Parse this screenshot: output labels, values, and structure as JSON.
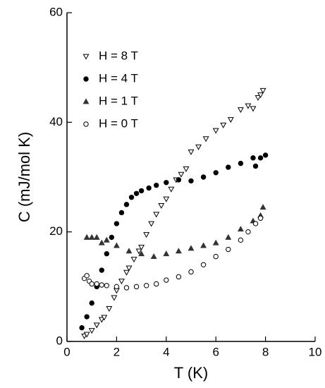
{
  "chart_data": {
    "type": "scatter",
    "x_label": "T (K)",
    "y_label": "C (mJ/mol K)",
    "xlim": [
      0,
      10
    ],
    "ylim": [
      0,
      60
    ],
    "xticks": [
      0,
      2,
      4,
      6,
      8,
      10
    ],
    "yticks": [
      0,
      20,
      40,
      60
    ],
    "legend": "upper left",
    "series": [
      {
        "name": "H = 8 T",
        "color": "#000000",
        "marker": "triangle-down-open",
        "x": [
          0.7,
          0.8,
          1.0,
          1.2,
          1.4,
          1.5,
          1.7,
          1.9,
          2.0,
          2.2,
          2.4,
          2.5,
          2.7,
          2.9,
          3.0,
          3.2,
          3.4,
          3.6,
          3.8,
          4.0,
          4.2,
          4.4,
          4.6,
          4.8,
          5.0,
          5.3,
          5.6,
          6.0,
          6.3,
          6.6,
          7.0,
          7.3,
          7.5,
          7.7,
          7.8,
          7.9
        ],
        "values": [
          1.0,
          1.3,
          2.0,
          3.0,
          4.0,
          4.4,
          6.0,
          8.0,
          9.3,
          11.0,
          12.6,
          13.4,
          15.0,
          16.5,
          17.2,
          19.5,
          21.5,
          23.2,
          24.8,
          26.0,
          27.8,
          29.5,
          30.5,
          31.5,
          34.6,
          35.5,
          37.0,
          38.5,
          39.5,
          40.5,
          42.3,
          43.0,
          42.5,
          44.5,
          45.0,
          45.8
        ]
      },
      {
        "name": "H = 4 T",
        "color": "#000000",
        "marker": "circle-filled",
        "x": [
          0.6,
          0.8,
          1.0,
          1.2,
          1.4,
          1.6,
          1.8,
          2.0,
          2.2,
          2.4,
          2.6,
          2.8,
          3.0,
          3.3,
          3.6,
          4.0,
          4.5,
          5.0,
          5.5,
          6.0,
          6.5,
          7.0,
          7.5,
          7.6,
          7.8,
          8.0
        ],
        "values": [
          2.5,
          4.5,
          7.0,
          10.0,
          13.0,
          16.0,
          19.0,
          21.5,
          23.5,
          25.0,
          26.3,
          27.0,
          27.5,
          28.0,
          28.5,
          29.0,
          29.5,
          29.3,
          30.0,
          30.8,
          31.8,
          32.5,
          33.5,
          32.0,
          33.5,
          34.0
        ]
      },
      {
        "name": "H = 1 T",
        "color": "#333333",
        "marker": "triangle-up-filled",
        "x": [
          0.8,
          1.0,
          1.2,
          1.4,
          1.6,
          2.0,
          2.5,
          3.0,
          3.5,
          4.0,
          4.5,
          5.0,
          5.5,
          6.0,
          6.5,
          7.0,
          7.5,
          7.8,
          7.9
        ],
        "values": [
          19.0,
          19.0,
          19.0,
          18.0,
          18.5,
          17.5,
          16.5,
          16.0,
          15.5,
          16.0,
          16.5,
          17.0,
          17.5,
          18.0,
          19.0,
          20.5,
          22.0,
          23.0,
          24.5
        ]
      },
      {
        "name": "H = 0 T",
        "color": "#000000",
        "marker": "circle-open",
        "x": [
          0.7,
          0.8,
          0.9,
          1.0,
          1.2,
          1.4,
          1.6,
          2.0,
          2.4,
          2.8,
          3.2,
          3.6,
          4.0,
          4.5,
          5.0,
          5.5,
          6.0,
          6.5,
          7.0,
          7.3,
          7.6,
          7.8
        ],
        "values": [
          11.5,
          12.0,
          11.0,
          10.5,
          10.5,
          10.3,
          10.2,
          10.0,
          9.8,
          10.0,
          10.2,
          10.5,
          11.2,
          11.8,
          12.7,
          14.0,
          15.5,
          16.8,
          18.5,
          20.0,
          21.5,
          22.5
        ]
      }
    ]
  }
}
